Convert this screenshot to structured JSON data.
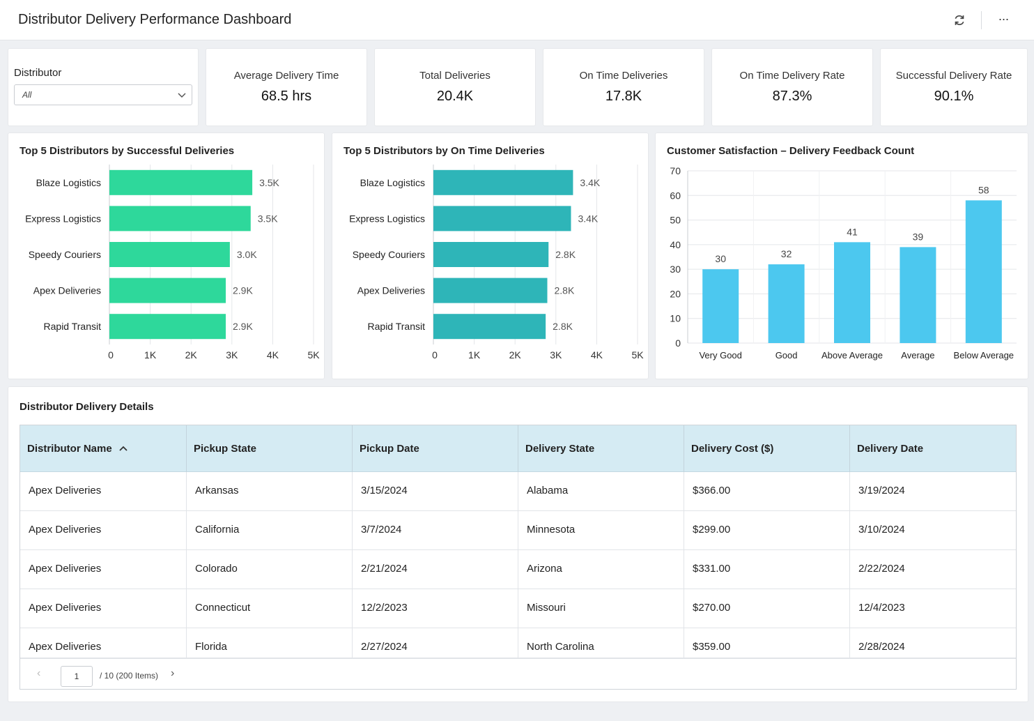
{
  "header": {
    "title": "Distributor Delivery Performance Dashboard",
    "more_label": "···"
  },
  "filter": {
    "label": "Distributor",
    "value": "All"
  },
  "kpis": [
    {
      "label": "Average Delivery Time",
      "value": "68.5 hrs"
    },
    {
      "label": "Total Deliveries",
      "value": "20.4K"
    },
    {
      "label": "On Time Deliveries",
      "value": "17.8K"
    },
    {
      "label": "On Time Delivery Rate",
      "value": "87.3%"
    },
    {
      "label": "Successful Delivery Rate",
      "value": "90.1%"
    }
  ],
  "chart_data": [
    {
      "type": "bar",
      "orientation": "horizontal",
      "title": "Top 5 Distributors by Successful Deliveries",
      "categories": [
        "Blaze Logistics",
        "Express Logistics",
        "Speedy Couriers",
        "Apex Deliveries",
        "Rapid Transit"
      ],
      "values": [
        3500,
        3460,
        2950,
        2850,
        2850
      ],
      "data_labels": [
        "3.5K",
        "3.5K",
        "3.0K",
        "2.9K",
        "2.9K"
      ],
      "xlim": [
        0,
        5000
      ],
      "x_ticks": [
        "0",
        "1K",
        "2K",
        "3K",
        "4K",
        "5K"
      ],
      "color": "#2ed89b",
      "grid": true
    },
    {
      "type": "bar",
      "orientation": "horizontal",
      "title": "Top 5 Distributors by On Time Deliveries",
      "categories": [
        "Blaze Logistics",
        "Express Logistics",
        "Speedy Couriers",
        "Apex Deliveries",
        "Rapid Transit"
      ],
      "values": [
        3420,
        3370,
        2820,
        2790,
        2750
      ],
      "data_labels": [
        "3.4K",
        "3.4K",
        "2.8K",
        "2.8K",
        "2.8K"
      ],
      "xlim": [
        0,
        5000
      ],
      "x_ticks": [
        "0",
        "1K",
        "2K",
        "3K",
        "4K",
        "5K"
      ],
      "color": "#2eb5b8",
      "grid": true
    },
    {
      "type": "bar",
      "orientation": "vertical",
      "title": "Customer Satisfaction – Delivery Feedback Count",
      "categories": [
        "Very Good",
        "Good",
        "Above Average",
        "Average",
        "Below Average"
      ],
      "values": [
        30,
        32,
        41,
        39,
        58
      ],
      "ylim": [
        0,
        70
      ],
      "y_ticks": [
        "0",
        "10",
        "20",
        "30",
        "40",
        "50",
        "60",
        "70"
      ],
      "color": "#4cc8ef",
      "grid": true
    }
  ],
  "table": {
    "title": "Distributor Delivery Details",
    "columns": [
      "Distributor Name",
      "Pickup State",
      "Pickup Date",
      "Delivery State",
      "Delivery Cost ($)",
      "Delivery Date"
    ],
    "rows": [
      [
        "Apex Deliveries",
        "Arkansas",
        "3/15/2024",
        "Alabama",
        "$366.00",
        "3/19/2024"
      ],
      [
        "Apex Deliveries",
        "California",
        "3/7/2024",
        "Minnesota",
        "$299.00",
        "3/10/2024"
      ],
      [
        "Apex Deliveries",
        "Colorado",
        "2/21/2024",
        "Arizona",
        "$331.00",
        "2/22/2024"
      ],
      [
        "Apex Deliveries",
        "Connecticut",
        "12/2/2023",
        "Missouri",
        "$270.00",
        "12/4/2023"
      ],
      [
        "Apex Deliveries",
        "Florida",
        "2/27/2024",
        "North Carolina",
        "$359.00",
        "2/28/2024"
      ]
    ],
    "pager": {
      "page": "1",
      "summary": "/  10 (200 Items)"
    }
  },
  "colors": {
    "accent_green": "#2ed89b",
    "accent_teal": "#2eb5b8",
    "accent_blue": "#4cc8ef",
    "table_header": "#d5ebf3"
  }
}
